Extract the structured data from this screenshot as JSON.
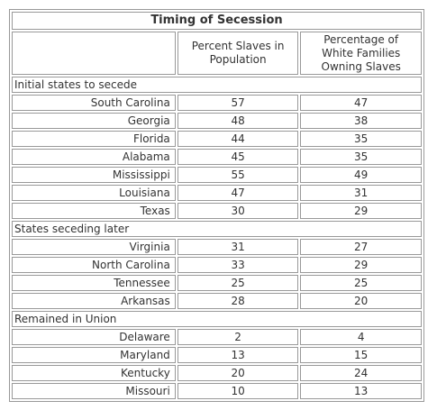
{
  "table": {
    "title": "Timing of Secession",
    "columns": [
      "Percent Slaves in Population",
      "Percentage of White Families Owning Slaves"
    ],
    "groups": [
      {
        "label": "Initial states to secede",
        "rows": [
          [
            "South Carolina",
            57,
            47
          ],
          [
            "Georgia",
            48,
            38
          ],
          [
            "Florida",
            44,
            35
          ],
          [
            "Alabama",
            45,
            35
          ],
          [
            "Mississippi",
            55,
            49
          ],
          [
            "Louisiana",
            47,
            31
          ],
          [
            "Texas",
            30,
            29
          ]
        ]
      },
      {
        "label": "States seceding later",
        "rows": [
          [
            "Virginia",
            31,
            27
          ],
          [
            "North Carolina",
            33,
            29
          ],
          [
            "Tennessee",
            25,
            25
          ],
          [
            "Arkansas",
            28,
            20
          ]
        ]
      },
      {
        "label": "Remained in Union",
        "rows": [
          [
            "Delaware",
            2,
            4
          ],
          [
            "Maryland",
            13,
            15
          ],
          [
            "Kentucky",
            20,
            24
          ],
          [
            "Missouri",
            10,
            13
          ]
        ]
      }
    ]
  }
}
